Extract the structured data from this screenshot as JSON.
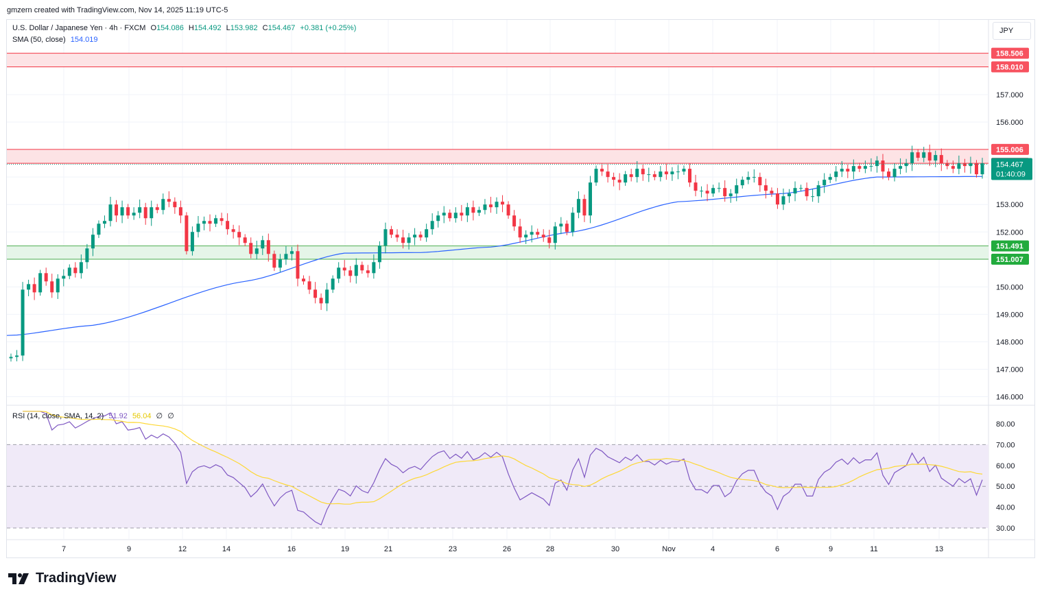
{
  "header": {
    "attribution": "gmzern created with TradingView.com, Nov 14, 2025 11:19 UTC-5"
  },
  "legend": {
    "symbol": "U.S. Dollar / Japanese Yen · 4h · FXCM",
    "open_label": "O",
    "open": "154.086",
    "high_label": "H",
    "high": "154.492",
    "low_label": "L",
    "low": "153.982",
    "close_label": "C",
    "close": "154.467",
    "change": "+0.381 (+0.25%)",
    "sma_label": "SMA (50, close)",
    "sma_value": "154.019",
    "rsi_label": "RSI (14, close, SMA, 14, 2)",
    "rsi_value": "51.92",
    "rsi_ma_value": "56.04",
    "rsi_extra_1": "∅",
    "rsi_extra_2": "∅"
  },
  "currency": "JPY",
  "footer": {
    "brand": "TradingView"
  },
  "colors": {
    "up": "#089981",
    "down": "#f23645",
    "sma": "#2962ff",
    "rsi": "#7e57c2",
    "rsi_ma": "#fdd835",
    "resistance_fill": "#fde3e5",
    "resistance_line": "#f23645",
    "support_fill": "#e5f5e8",
    "support_line": "#4caf50",
    "rsi_band": "#f0eaf8",
    "grid": "#f0f3fa"
  },
  "chart_data": [
    {
      "type": "candlestick",
      "price_axis": {
        "ticks": [
          "157.000",
          "156.000",
          "155.000",
          "154.000",
          "153.000",
          "152.000",
          "151.000",
          "150.000",
          "149.000",
          "148.000",
          "147.000",
          "146.000"
        ],
        "range": [
          145.75,
          159.4
        ]
      },
      "time_axis": {
        "labels": [
          "7",
          "9",
          "12",
          "14",
          "16",
          "19",
          "21",
          "23",
          "26",
          "28",
          "30",
          "Nov",
          "4",
          "6",
          "9",
          "11",
          "13"
        ]
      },
      "resistance_zones": [
        {
          "top": 158.506,
          "bottom": 158.01,
          "top_label": "158.506",
          "bottom_label": "158.010"
        },
        {
          "top": 155.006,
          "bottom": 154.501,
          "top_label": "155.006",
          "bottom_label": "154.501"
        }
      ],
      "support_zones": [
        {
          "top": 151.491,
          "bottom": 151.007,
          "top_label": "151.491",
          "bottom_label": "151.007"
        }
      ],
      "last_price": {
        "value": 154.467,
        "label": "154.467",
        "countdown": "01:40:09"
      },
      "closes": [
        147.45,
        147.5,
        149.9,
        150.1,
        149.8,
        150.5,
        150.2,
        149.8,
        150.3,
        150.4,
        150.7,
        150.5,
        150.9,
        151.4,
        151.9,
        152.3,
        152.4,
        153.0,
        152.6,
        152.9,
        152.6,
        152.7,
        152.9,
        152.5,
        152.9,
        152.8,
        153.2,
        153.1,
        152.9,
        152.6,
        151.3,
        152.0,
        152.3,
        152.4,
        152.3,
        152.5,
        152.4,
        152.1,
        152.0,
        151.8,
        151.6,
        151.2,
        151.4,
        151.7,
        151.2,
        150.7,
        151.0,
        151.2,
        151.3,
        150.3,
        150.2,
        149.9,
        149.6,
        149.4,
        149.9,
        150.3,
        150.7,
        150.6,
        150.4,
        150.8,
        150.6,
        150.5,
        150.9,
        151.5,
        152.1,
        151.9,
        151.8,
        151.6,
        151.8,
        151.9,
        151.8,
        152.1,
        152.4,
        152.6,
        152.7,
        152.5,
        152.7,
        152.6,
        152.9,
        152.7,
        152.8,
        153.0,
        152.9,
        153.1,
        153.0,
        152.6,
        152.2,
        151.8,
        151.9,
        152.0,
        151.9,
        151.8,
        151.6,
        152.2,
        152.3,
        152.0,
        152.7,
        153.2,
        152.6,
        153.8,
        154.3,
        154.2,
        154.0,
        153.9,
        153.8,
        154.1,
        154.0,
        154.3,
        154.1,
        154.1,
        154.0,
        154.2,
        154.1,
        154.2,
        154.2,
        154.3,
        153.8,
        153.5,
        153.5,
        153.4,
        153.6,
        153.6,
        153.3,
        153.4,
        153.7,
        153.9,
        154.0,
        154.0,
        153.7,
        153.5,
        153.4,
        153.0,
        153.3,
        153.4,
        153.6,
        153.6,
        153.3,
        153.3,
        153.7,
        153.9,
        154.0,
        154.2,
        154.3,
        154.2,
        154.4,
        154.3,
        154.4,
        154.4,
        154.6,
        154.2,
        154.0,
        154.3,
        154.4,
        154.5,
        154.9,
        154.7,
        154.9,
        154.6,
        154.8,
        154.5,
        154.4,
        154.3,
        154.5,
        154.4,
        154.5,
        154.1,
        154.5
      ],
      "sma_50": {
        "start": 148.23,
        "checkpoints": [
          [
            0,
            148.23
          ],
          [
            14,
            148.6
          ],
          [
            40,
            150.2
          ],
          [
            57,
            151.23
          ],
          [
            70,
            151.25
          ],
          [
            82,
            151.45
          ],
          [
            96,
            152.0
          ],
          [
            114,
            153.1
          ],
          [
            132,
            153.4
          ],
          [
            148,
            154.0
          ],
          [
            165,
            154.02
          ],
          [
            169,
            154.02
          ]
        ]
      },
      "rsi": {
        "levels": [
          "80.00",
          "70.00",
          "60.00",
          "50.00",
          "40.00",
          "30.00"
        ],
        "range": [
          26,
          86
        ],
        "upper_band": 70,
        "lower_band": 30,
        "mid": 50
      }
    }
  ]
}
